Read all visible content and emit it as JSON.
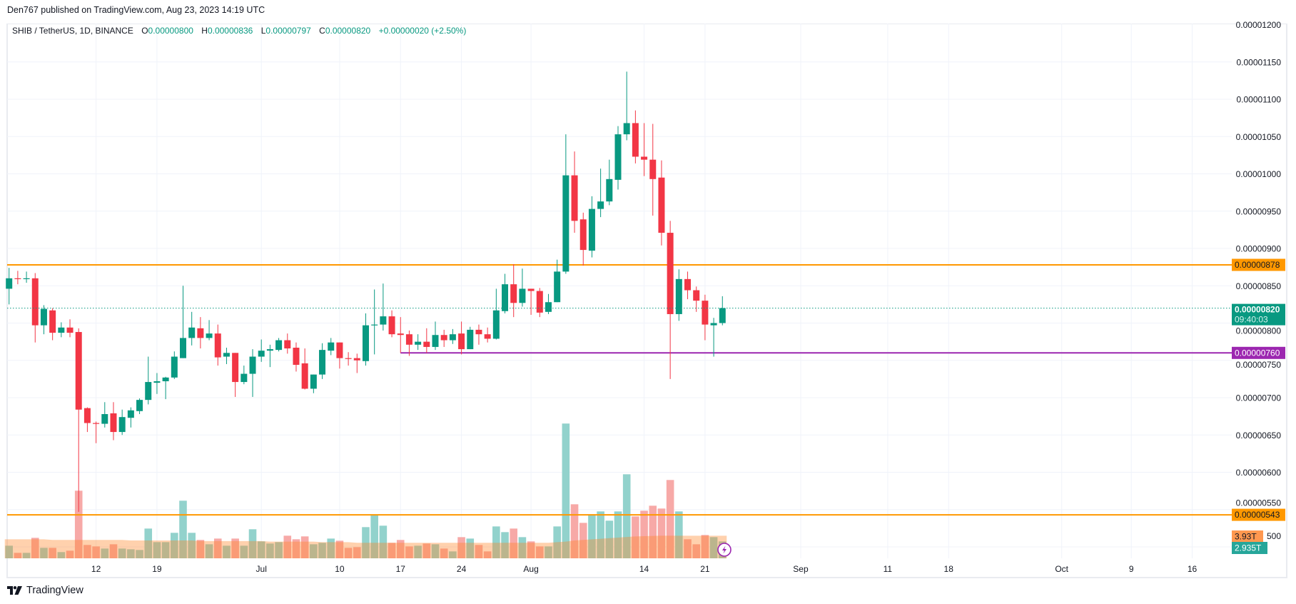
{
  "credit": "Den767 published on TradingView.com, Aug 23, 2023 14:19 UTC",
  "legend": {
    "symbol": "SHIB / TetherUS, 1D, BINANCE",
    "o_label": "O",
    "o": "0.00000800",
    "h_label": "H",
    "h": "0.00000836",
    "l_label": "L",
    "l": "0.00000797",
    "c_label": "C",
    "c": "0.00000820",
    "change": "+0.00000020 (+2.50%)"
  },
  "footer": {
    "brand": "TradingView"
  },
  "colors": {
    "up": "#089981",
    "down": "#f23645",
    "up_volume": "#92d2cc",
    "down_volume": "#f7a9a7",
    "volume_ma": "#ff9850",
    "resistance": "#ff9800",
    "support": "#9c27b0",
    "grid": "#f0f3fa"
  },
  "chart_data": {
    "type": "candlestick",
    "title": "",
    "xlabel": "",
    "ylabel": "",
    "ylim": [
      5e-06,
      1.2e-05
    ],
    "grid": true,
    "volume_unit": "T",
    "candles_columns": [
      "date",
      "open",
      "high",
      "low",
      "close",
      "volume"
    ],
    "candles": [
      [
        "2023-06-02",
        8.46e-06,
        8.74e-06,
        8.25e-06,
        8.6e-06,
        2.19
      ],
      [
        "2023-06-03",
        8.6e-06,
        8.7e-06,
        8.52e-06,
        8.59e-06,
        0.95
      ],
      [
        "2023-06-04",
        8.59e-06,
        8.69e-06,
        8.54e-06,
        8.6e-06,
        0.95
      ],
      [
        "2023-06-05",
        8.6e-06,
        8.67e-06,
        7.74e-06,
        7.97e-06,
        3.56
      ],
      [
        "2023-06-06",
        7.97e-06,
        8.24e-06,
        7.85e-06,
        8.19e-06,
        1.82
      ],
      [
        "2023-06-07",
        8.17e-06,
        8.2e-06,
        7.77e-06,
        7.87e-06,
        1.82
      ],
      [
        "2023-06-08",
        7.87e-06,
        8.01e-06,
        7.81e-06,
        7.94e-06,
        1.08
      ],
      [
        "2023-06-09",
        7.94e-06,
        8.05e-06,
        7.81e-06,
        7.87e-06,
        1.32
      ],
      [
        "2023-06-10",
        7.88e-06,
        7.93e-06,
        5.47e-06,
        6.84e-06,
        11.75
      ],
      [
        "2023-06-11",
        6.86e-06,
        6.87e-06,
        6.54e-06,
        6.66e-06,
        2.32
      ],
      [
        "2023-06-12",
        6.66e-06,
        6.68e-06,
        6.39e-06,
        6.65e-06,
        2.07
      ],
      [
        "2023-06-13",
        6.65e-06,
        6.94e-06,
        6.6e-06,
        6.78e-06,
        1.7
      ],
      [
        "2023-06-14",
        6.79e-06,
        6.94e-06,
        6.43e-06,
        6.54e-06,
        2.44
      ],
      [
        "2023-06-15",
        6.54e-06,
        6.84e-06,
        6.5e-06,
        6.74e-06,
        1.7
      ],
      [
        "2023-06-16",
        6.73e-06,
        6.87e-06,
        6.6e-06,
        6.83e-06,
        1.57
      ],
      [
        "2023-06-17",
        6.82e-06,
        6.99e-06,
        6.78e-06,
        6.97e-06,
        1.45
      ],
      [
        "2023-06-18",
        6.97e-06,
        7.55e-06,
        6.91e-06,
        7.21e-06,
        5.17
      ],
      [
        "2023-06-19",
        7.2e-06,
        7.33e-06,
        7.05e-06,
        7.22e-06,
        2.81
      ],
      [
        "2023-06-20",
        7.22e-06,
        7.28e-06,
        6.98e-06,
        7.27e-06,
        2.81
      ],
      [
        "2023-06-21",
        7.27e-06,
        7.62e-06,
        7.25e-06,
        7.55e-06,
        4.43
      ],
      [
        "2023-06-22",
        7.53e-06,
        8.5e-06,
        7.53e-06,
        7.8e-06,
        10.01
      ],
      [
        "2023-06-23",
        7.8e-06,
        8.15e-06,
        7.7e-06,
        7.94e-06,
        4.43
      ],
      [
        "2023-06-24",
        7.93e-06,
        8.08e-06,
        7.66e-06,
        7.8e-06,
        3.19
      ],
      [
        "2023-06-25",
        7.8e-06,
        8.04e-06,
        7.77e-06,
        7.86e-06,
        2.44
      ],
      [
        "2023-06-26",
        7.86e-06,
        7.98e-06,
        7.43e-06,
        7.54e-06,
        3.43
      ],
      [
        "2023-06-27",
        7.55e-06,
        7.67e-06,
        7.45e-06,
        7.6e-06,
        2.19
      ],
      [
        "2023-06-28",
        7.6e-06,
        7.6e-06,
        7.01e-06,
        7.21e-06,
        3.43
      ],
      [
        "2023-06-29",
        7.21e-06,
        7.43e-06,
        7.18e-06,
        7.32e-06,
        2.19
      ],
      [
        "2023-06-30",
        7.32e-06,
        7.65e-06,
        7.01e-06,
        7.55e-06,
        5.05
      ],
      [
        "2023-07-01",
        7.55e-06,
        7.78e-06,
        7.48e-06,
        7.63e-06,
        2.94
      ],
      [
        "2023-07-02",
        7.63e-06,
        7.71e-06,
        7.41e-06,
        7.65e-06,
        2.57
      ],
      [
        "2023-07-03",
        7.64e-06,
        7.8e-06,
        7.62e-06,
        7.77e-06,
        2.81
      ],
      [
        "2023-07-04",
        7.77e-06,
        7.86e-06,
        7.59e-06,
        7.66e-06,
        3.93
      ],
      [
        "2023-07-05",
        7.67e-06,
        7.74e-06,
        7.35e-06,
        7.44e-06,
        3.31
      ],
      [
        "2023-07-06",
        7.46e-06,
        7.66e-06,
        7.11e-06,
        7.12e-06,
        3.81
      ],
      [
        "2023-07-07",
        7.12e-06,
        7.31e-06,
        7.06e-06,
        7.31e-06,
        2.44
      ],
      [
        "2023-07-08",
        7.31e-06,
        7.73e-06,
        7.25e-06,
        7.64e-06,
        2.69
      ],
      [
        "2023-07-09",
        7.63e-06,
        7.8e-06,
        7.57e-06,
        7.74e-06,
        3.43
      ],
      [
        "2023-07-10",
        7.74e-06,
        7.74e-06,
        7.39e-06,
        7.53e-06,
        3.06
      ],
      [
        "2023-07-11",
        7.53e-06,
        7.61e-06,
        7.43e-06,
        7.52e-06,
        1.82
      ],
      [
        "2023-07-12",
        7.53e-06,
        7.59e-06,
        7.33e-06,
        7.5e-06,
        1.94
      ],
      [
        "2023-07-13",
        7.49e-06,
        8.13e-06,
        7.43e-06,
        7.97e-06,
        5.42
      ],
      [
        "2023-07-14",
        7.97e-06,
        8.45e-06,
        7.58e-06,
        7.98e-06,
        7.53
      ],
      [
        "2023-07-15",
        7.98e-06,
        8.53e-06,
        7.9e-06,
        8.09e-06,
        5.67
      ],
      [
        "2023-07-16",
        8.09e-06,
        8.17e-06,
        7.81e-06,
        7.85e-06,
        2.69
      ],
      [
        "2023-07-17",
        7.86e-06,
        8.08e-06,
        7.6e-06,
        7.84e-06,
        3.19
      ],
      [
        "2023-07-18",
        7.85e-06,
        7.9e-06,
        7.56e-06,
        7.71e-06,
        2.07
      ],
      [
        "2023-07-19",
        7.71e-06,
        7.85e-06,
        7.64e-06,
        7.75e-06,
        2.19
      ],
      [
        "2023-07-20",
        7.75e-06,
        7.93e-06,
        7.6e-06,
        7.68e-06,
        2.57
      ],
      [
        "2023-07-21",
        7.68e-06,
        8.02e-06,
        7.64e-06,
        7.84e-06,
        2.44
      ],
      [
        "2023-07-22",
        7.84e-06,
        7.91e-06,
        7.68e-06,
        7.77e-06,
        1.7
      ],
      [
        "2023-07-23",
        7.77e-06,
        7.92e-06,
        7.72e-06,
        7.85e-06,
        1.2
      ],
      [
        "2023-07-24",
        7.86e-06,
        8.02e-06,
        7.58e-06,
        7.65e-06,
        3.68
      ],
      [
        "2023-07-25",
        7.65e-06,
        7.95e-06,
        7.65e-06,
        7.91e-06,
        3.43
      ],
      [
        "2023-07-26",
        7.91e-06,
        7.98e-06,
        7.71e-06,
        7.85e-06,
        2.32
      ],
      [
        "2023-07-27",
        7.85e-06,
        7.94e-06,
        7.74e-06,
        7.79e-06,
        1.2
      ],
      [
        "2023-07-28",
        7.79e-06,
        8.46e-06,
        7.78e-06,
        8.17e-06,
        5.54
      ],
      [
        "2023-07-29",
        8.16e-06,
        8.66e-06,
        8.13e-06,
        8.52e-06,
        4.55
      ],
      [
        "2023-07-30",
        8.52e-06,
        8.79e-06,
        8.08e-06,
        8.27e-06,
        5.17
      ],
      [
        "2023-07-31",
        8.27e-06,
        8.73e-06,
        8.22e-06,
        8.46e-06,
        3.68
      ],
      [
        "2023-08-01",
        8.46e-06,
        8.46e-06,
        8.11e-06,
        8.43e-06,
        2.94
      ],
      [
        "2023-08-02",
        8.43e-06,
        8.47e-06,
        8.08e-06,
        8.14e-06,
        2.07
      ],
      [
        "2023-08-03",
        8.15e-06,
        8.39e-06,
        8.12e-06,
        8.28e-06,
        2.07
      ],
      [
        "2023-08-04",
        8.28e-06,
        8.85e-06,
        8.28e-06,
        8.69e-06,
        5.54
      ],
      [
        "2023-08-05",
        8.69e-06,
        1.053e-05,
        8.66e-06,
        9.98e-06,
        23.42
      ],
      [
        "2023-08-06",
        9.98e-06,
        1.03e-05,
        9.21e-06,
        9.37e-06,
        9.39
      ],
      [
        "2023-08-07",
        9.39e-06,
        9.48e-06,
        8.77e-06,
        8.98e-06,
        6.16
      ],
      [
        "2023-08-08",
        8.97e-06,
        9.7e-06,
        8.88e-06,
        9.53e-06,
        7.53
      ],
      [
        "2023-08-09",
        9.53e-06,
        1.007e-05,
        9.42e-06,
        9.63e-06,
        8.15
      ],
      [
        "2023-08-10",
        9.63e-06,
        1.019e-05,
        9.58e-06,
        9.93e-06,
        6.54
      ],
      [
        "2023-08-11",
        9.92e-06,
        1.064e-05,
        9.79e-06,
        1.053e-05,
        8.15
      ],
      [
        "2023-08-12",
        1.053e-05,
        1.137e-05,
        1.045e-05,
        1.068e-05,
        14.6
      ],
      [
        "2023-08-13",
        1.068e-05,
        1.085e-05,
        1.014e-05,
        1.023e-05,
        7.28
      ],
      [
        "2023-08-14",
        1.023e-05,
        1.068e-05,
        9.97e-06,
        1.019e-05,
        8.27
      ],
      [
        "2023-08-15",
        1.019e-05,
        1.067e-05,
        9.44e-06,
        9.93e-06,
        9.14
      ],
      [
        "2023-08-16",
        9.95e-06,
        1.018e-05,
        9.04e-06,
        9.21e-06,
        8.65
      ],
      [
        "2023-08-17",
        9.21e-06,
        9.37e-06,
        7.25e-06,
        8.12e-06,
        13.61
      ],
      [
        "2023-08-18",
        8.12e-06,
        8.72e-06,
        8.03e-06,
        8.59e-06,
        8.15
      ],
      [
        "2023-08-19",
        8.59e-06,
        8.69e-06,
        8.32e-06,
        8.44e-06,
        3.31
      ],
      [
        "2023-08-20",
        8.44e-06,
        8.49e-06,
        8.15e-06,
        8.3e-06,
        2.44
      ],
      [
        "2023-08-21",
        8.3e-06,
        8.38e-06,
        7.77e-06,
        7.98e-06,
        4.05
      ],
      [
        "2023-08-22",
        7.97e-06,
        8.07e-06,
        7.55e-06,
        8e-06,
        3.68
      ],
      [
        "2023-08-23",
        8e-06,
        8.36e-06,
        7.97e-06,
        8.2e-06,
        2.935
      ]
    ],
    "volume_ma": [
      3.3,
      3.3,
      3.3,
      3.3,
      3.3,
      3.2,
      3.2,
      3.2,
      3.2,
      3.2,
      3.2,
      3.2,
      3.2,
      3.2,
      3.1,
      3.1,
      3.1,
      3.1,
      3.1,
      3.1,
      3.1,
      3.1,
      3.0,
      3.0,
      3.0,
      3.0,
      3.0,
      3.0,
      3.0,
      3.0,
      2.9,
      2.9,
      2.9,
      2.9,
      2.9,
      2.9,
      2.8,
      2.8,
      2.8,
      2.8,
      2.7,
      2.7,
      2.7,
      2.7,
      2.7,
      2.7,
      2.7,
      2.7,
      2.7,
      2.7,
      2.7,
      2.7,
      2.7,
      2.7,
      2.7,
      2.7,
      2.7,
      2.7,
      2.7,
      2.7,
      2.7,
      2.7,
      2.7,
      2.8,
      2.9,
      3.1,
      3.2,
      3.3,
      3.4,
      3.5,
      3.6,
      3.7,
      3.8,
      3.85,
      3.9,
      3.93,
      3.93,
      3.93,
      3.93,
      3.93,
      3.93,
      3.93,
      3.93
    ],
    "y_ticks": [
      "0.00000500",
      "0.00000550",
      "0.00000600",
      "0.00000650",
      "0.00000700",
      "0.00000750",
      "0.00000800",
      "0.00000850",
      "0.00000900",
      "0.00000950",
      "0.00001000",
      "0.00001050",
      "0.00001100",
      "0.00001150",
      "0.00001200"
    ],
    "y_ticks_display": [
      "500",
      "0.00000550",
      "0.00000600",
      "0.00000650",
      "0.00000700",
      "0.00000750",
      "0.00000800",
      "0.00000850",
      "0.00000900",
      "0.00000950",
      "0.00001000",
      "0.00001050",
      "0.00001100",
      "0.00001150",
      "0.00001200"
    ],
    "x_ticks": [
      {
        "label": "12",
        "date": "2023-06-12"
      },
      {
        "label": "19",
        "date": "2023-06-19"
      },
      {
        "label": "Jul",
        "date": "2023-07-01"
      },
      {
        "label": "10",
        "date": "2023-07-10"
      },
      {
        "label": "17",
        "date": "2023-07-17"
      },
      {
        "label": "24",
        "date": "2023-07-24"
      },
      {
        "label": "Aug",
        "date": "2023-08-01"
      },
      {
        "label": "14",
        "date": "2023-08-14"
      },
      {
        "label": "21",
        "date": "2023-08-21"
      },
      {
        "label": "Sep",
        "date": "2023-09-01"
      },
      {
        "label": "11",
        "date": "2023-09-11"
      },
      {
        "label": "18",
        "date": "2023-09-18"
      },
      {
        "label": "Oct",
        "date": "2023-10-01"
      },
      {
        "label": "9",
        "date": "2023-10-09"
      },
      {
        "label": "16",
        "date": "2023-10-16"
      }
    ],
    "levels": [
      {
        "label": "0.00000878",
        "value": 8.78e-06,
        "color": "#ff9800",
        "text_color": "#131722",
        "from_date": "2023-06-02"
      },
      {
        "label": "0.00000760",
        "value": 7.6e-06,
        "color": "#9c27b0",
        "text_color": "#ffffff",
        "from_date": "2023-07-17"
      },
      {
        "label": "0.00000543",
        "value": 5.43e-06,
        "color": "#ff9800",
        "text_color": "#131722",
        "from_date": "2023-06-02"
      }
    ],
    "last_price": {
      "label": "0.00000820",
      "value": 8.2e-06,
      "countdown": "09:40:03",
      "color": "#089981"
    },
    "volume_labels": {
      "ma": "3.93T",
      "ma_color": "#ff9850",
      "last": "2.935T",
      "last_color": "#26a69a"
    }
  }
}
